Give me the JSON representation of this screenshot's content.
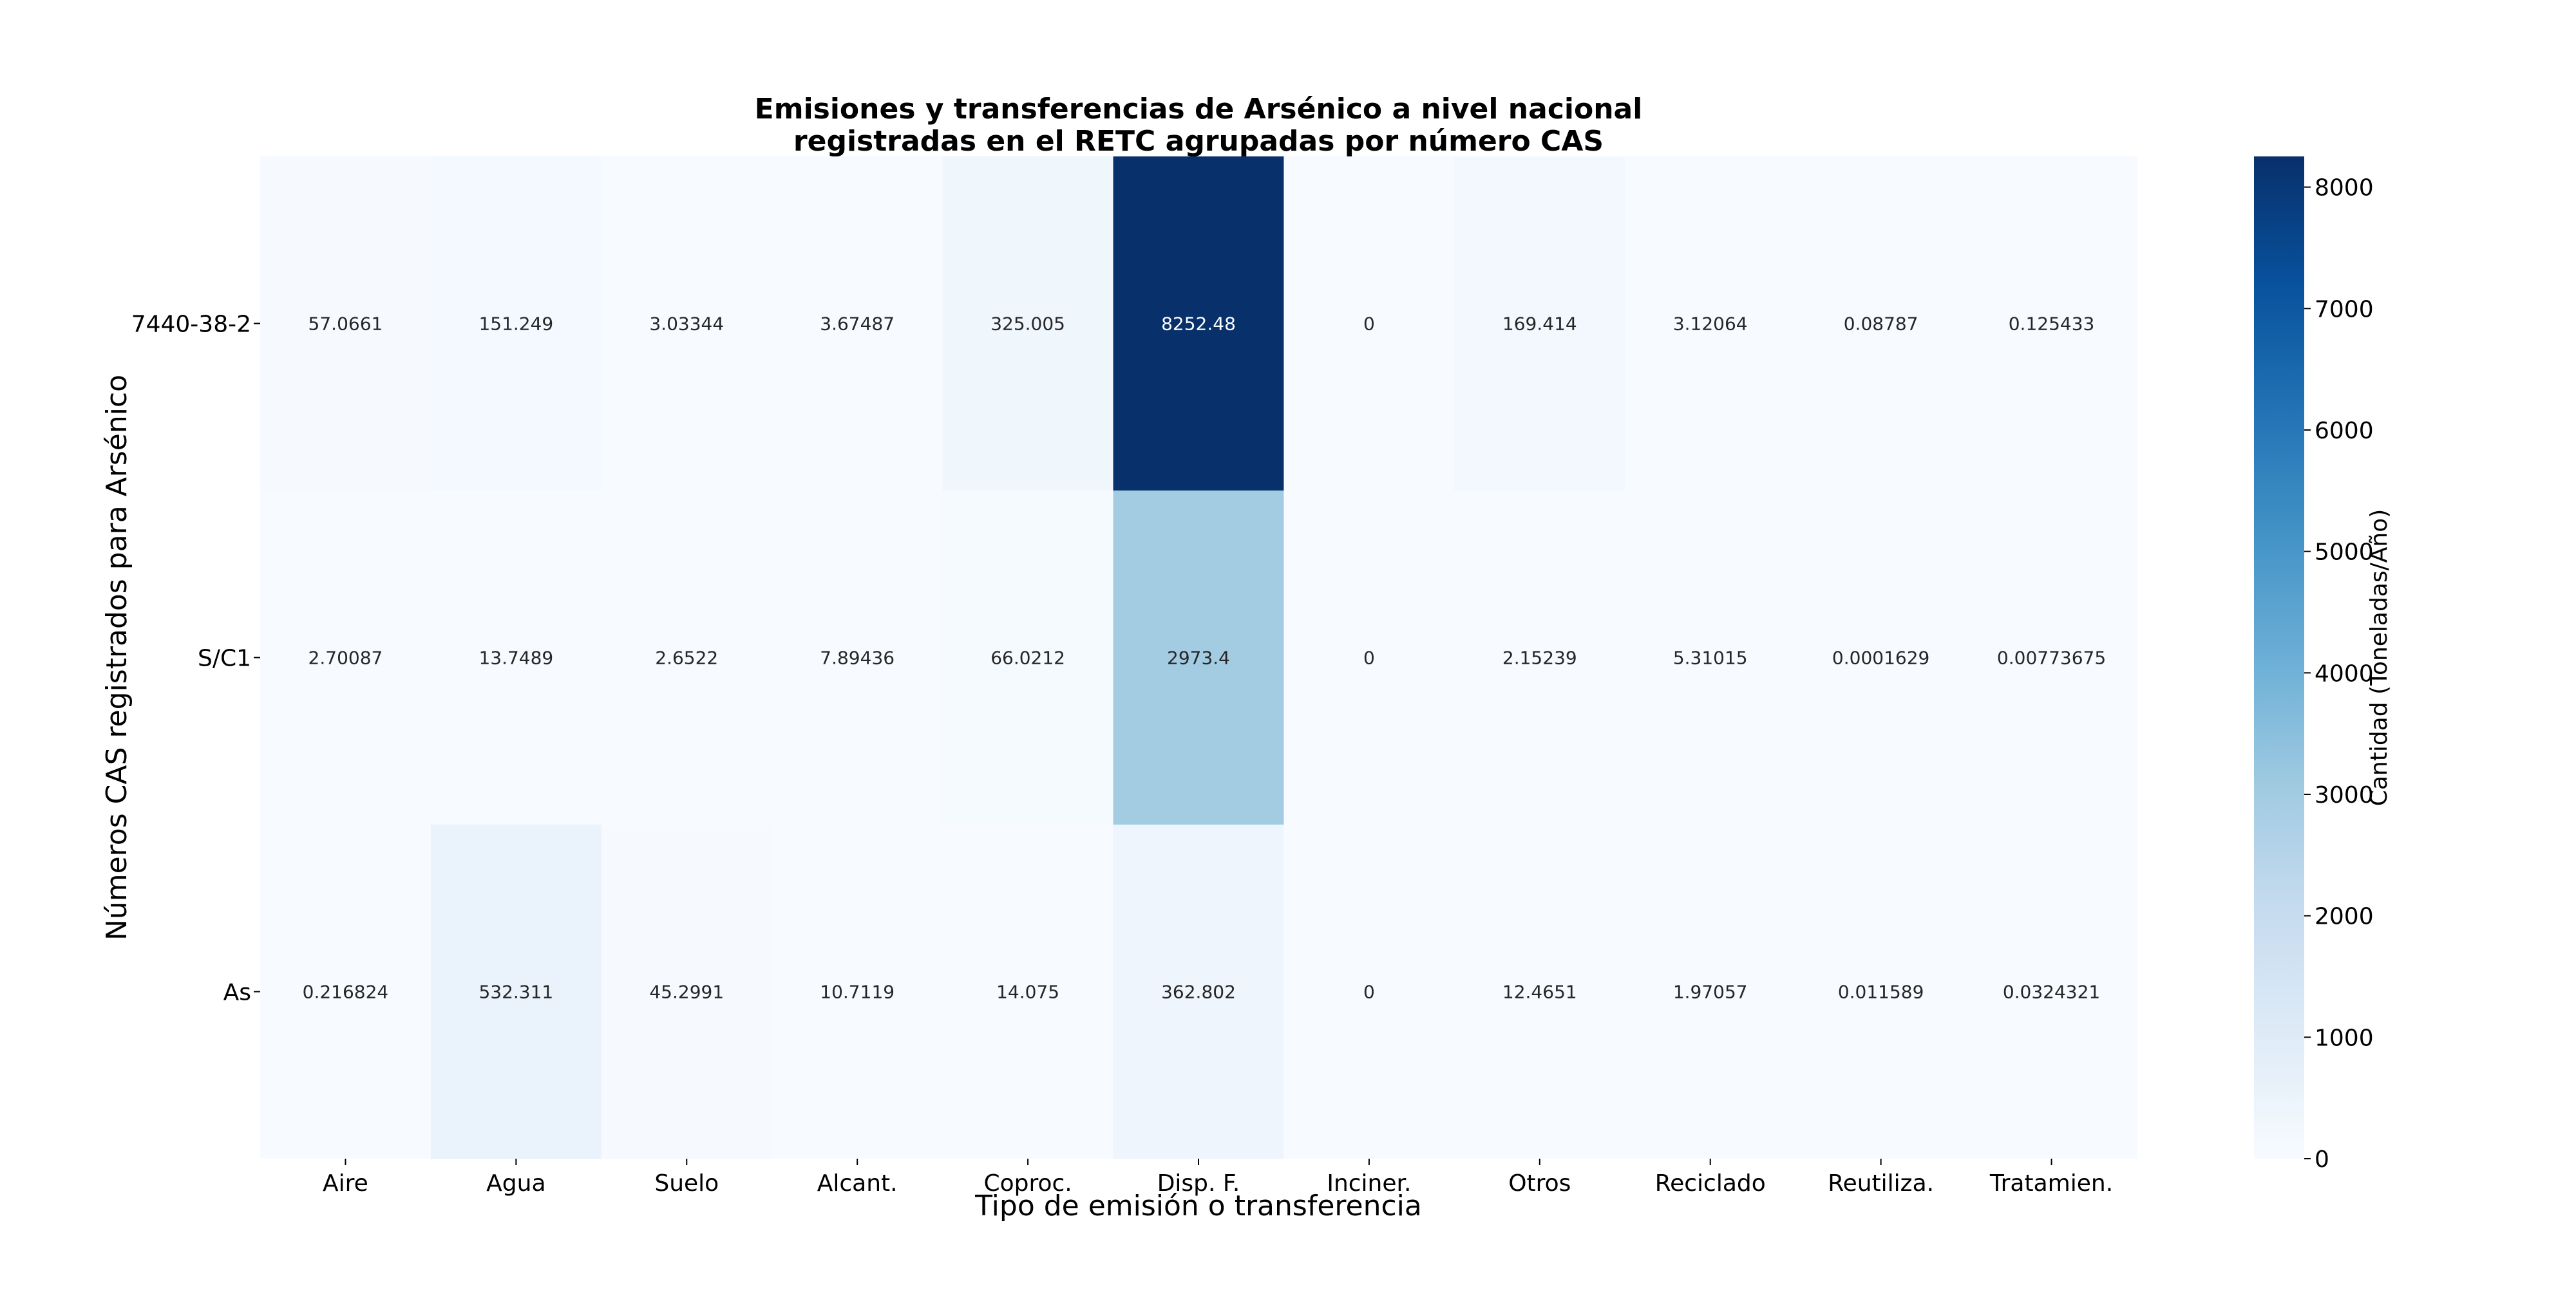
{
  "chart_data": {
    "type": "heatmap",
    "title_lines": [
      "Emisiones y transferencias de Arsénico a nivel nacional",
      "registradas en el RETC agrupadas por número CAS"
    ],
    "xlabel": "Tipo de emisión o transferencia",
    "ylabel": "Números CAS registrados para Arsénico",
    "x_categories": [
      "Aire",
      "Agua",
      "Suelo",
      "Alcant.",
      "Coproc.",
      "Disp. F.",
      "Inciner.",
      "Otros",
      "Reciclado",
      "Reutiliza.",
      "Tratamien."
    ],
    "y_categories": [
      "7440-38-2",
      "S/C1",
      "As"
    ],
    "values": [
      [
        57.0661,
        151.249,
        3.03344,
        3.67487,
        325.005,
        8252.48,
        0,
        169.414,
        3.12064,
        0.08787,
        0.125433
      ],
      [
        2.70087,
        13.7489,
        2.6522,
        7.89436,
        66.0212,
        2973.4,
        0,
        2.15239,
        5.31015,
        0.0001629,
        0.00773675
      ],
      [
        0.216824,
        532.311,
        45.2991,
        10.7119,
        14.075,
        362.802,
        0,
        12.4651,
        1.97057,
        0.011589,
        0.0324321
      ]
    ],
    "value_labels": [
      [
        "57.0661",
        "151.249",
        "3.03344",
        "3.67487",
        "325.005",
        "8252.48",
        "0",
        "169.414",
        "3.12064",
        "0.08787",
        "0.125433"
      ],
      [
        "2.70087",
        "13.7489",
        "2.6522",
        "7.89436",
        "66.0212",
        "2973.4",
        "0",
        "2.15239",
        "5.31015",
        "0.0001629",
        "0.00773675"
      ],
      [
        "0.216824",
        "532.311",
        "45.2991",
        "10.7119",
        "14.075",
        "362.802",
        "0",
        "12.4651",
        "1.97057",
        "0.011589",
        "0.0324321"
      ]
    ],
    "colormap": "Blues",
    "color_range": [
      0,
      8252.48
    ],
    "colorbar": {
      "label": "Cantidad (Toneladas/Año)",
      "ticks": [
        0,
        1000,
        2000,
        3000,
        4000,
        5000,
        6000,
        7000,
        8000
      ],
      "placement": "right"
    },
    "grid": false
  }
}
